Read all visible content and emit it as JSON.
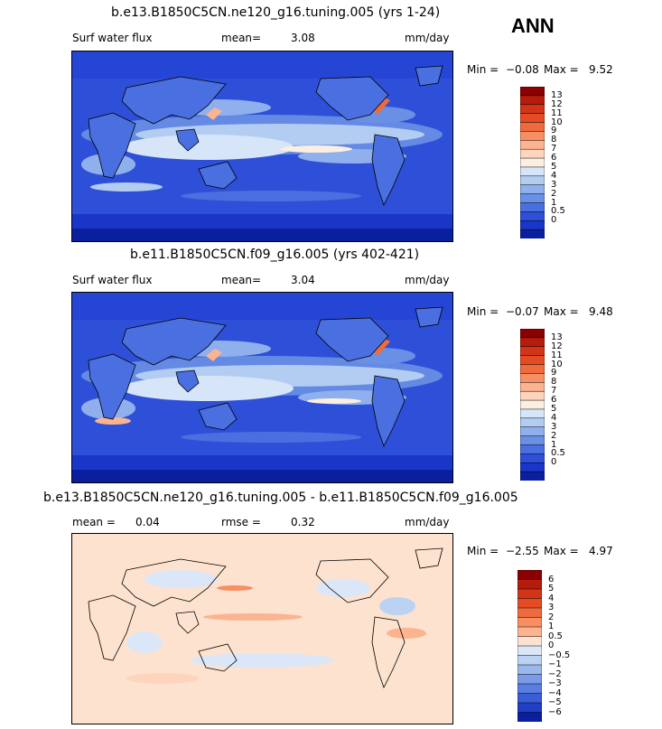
{
  "season": "ANN",
  "panels": [
    {
      "title": "b.e13.B1850C5CN.ne120_g16.tuning.005 (yrs 1-24)",
      "left_label": "Surf water flux",
      "stat1_label": "mean=",
      "stat1_value": "3.08",
      "units": "mm/day",
      "min_label": "Min = ",
      "min_value": "−0.08",
      "max_label": "Max = ",
      "max_value": "9.52"
    },
    {
      "title": "b.e11.B1850C5CN.f09_g16.005 (yrs 402-421)",
      "left_label": "Surf water flux",
      "stat1_label": "mean=",
      "stat1_value": "3.04",
      "units": "mm/day",
      "min_label": "Min = ",
      "min_value": "−0.07",
      "max_label": "Max = ",
      "max_value": "9.48"
    },
    {
      "title": "b.e13.B1850C5CN.ne120_g16.tuning.005 - b.e11.B1850C5CN.f09_g16.005",
      "stat1_label": "mean = ",
      "stat1_value": "0.04",
      "stat2_label": "rmse = ",
      "stat2_value": "0.32",
      "units": "mm/day",
      "min_label": "Min = ",
      "min_value": "−2.55",
      "max_label": "Max = ",
      "max_value": "4.97"
    }
  ],
  "colorbars": [
    {
      "labels": [
        "13",
        "12",
        "11",
        "10",
        "9",
        "8",
        "7",
        "6",
        "5",
        "4",
        "3",
        "2",
        "1",
        "0.5",
        "0"
      ],
      "colors": [
        "#8b0000",
        "#b51c0c",
        "#d23418",
        "#e44a24",
        "#ef6a3c",
        "#f78f62",
        "#fbb390",
        "#fdd5bd",
        "#fcefe2",
        "#d6e6f8",
        "#b3cdf2",
        "#8fb0ec",
        "#6a90e6",
        "#4a6fe0",
        "#2e50d8",
        "#1a36c8",
        "#0a1f9e"
      ]
    },
    {
      "labels": [
        "13",
        "12",
        "11",
        "10",
        "9",
        "8",
        "7",
        "6",
        "5",
        "4",
        "3",
        "2",
        "1",
        "0.5",
        "0"
      ],
      "colors": [
        "#8b0000",
        "#b51c0c",
        "#d23418",
        "#e44a24",
        "#ef6a3c",
        "#f78f62",
        "#fbb390",
        "#fdd5bd",
        "#fcefe2",
        "#d6e6f8",
        "#b3cdf2",
        "#8fb0ec",
        "#6a90e6",
        "#4a6fe0",
        "#2e50d8",
        "#1a36c8",
        "#0a1f9e"
      ]
    },
    {
      "labels": [
        "6",
        "5",
        "4",
        "3",
        "2",
        "1",
        "0.5",
        "0",
        "−0.5",
        "−1",
        "−2",
        "−3",
        "−4",
        "−5",
        "−6"
      ],
      "colors": [
        "#8b0000",
        "#b51c0c",
        "#d23418",
        "#e44a24",
        "#ef6a3c",
        "#f78f62",
        "#fbb390",
        "#fde2cf",
        "#dbe7f8",
        "#bcd2f3",
        "#9bb8ee",
        "#7a9be8",
        "#5a7de2",
        "#3a5ed8",
        "#1f40c4",
        "#0a1f9e"
      ]
    }
  ],
  "chart_data": [
    {
      "type": "heatmap",
      "title": "b.e13.B1850C5CN.ne120_g16.tuning.005 (yrs 1-24)",
      "variable": "Surf water flux",
      "units": "mm/day",
      "mean": 3.08,
      "min": -0.08,
      "max": 9.52,
      "contour_levels": [
        0,
        0.5,
        1,
        2,
        3,
        4,
        5,
        6,
        7,
        8,
        9,
        10,
        11,
        12,
        13
      ]
    },
    {
      "type": "heatmap",
      "title": "b.e11.B1850C5CN.f09_g16.005 (yrs 402-421)",
      "variable": "Surf water flux",
      "units": "mm/day",
      "mean": 3.04,
      "min": -0.07,
      "max": 9.48,
      "contour_levels": [
        0,
        0.5,
        1,
        2,
        3,
        4,
        5,
        6,
        7,
        8,
        9,
        10,
        11,
        12,
        13
      ]
    },
    {
      "type": "heatmap",
      "title": "b.e13.B1850C5CN.ne120_g16.tuning.005 - b.e11.B1850C5CN.f09_g16.005",
      "units": "mm/day",
      "mean": 0.04,
      "rmse": 0.32,
      "min": -2.55,
      "max": 4.97,
      "contour_levels": [
        -6,
        -5,
        -4,
        -3,
        -2,
        -1,
        -0.5,
        0,
        0.5,
        1,
        2,
        3,
        4,
        5,
        6
      ]
    }
  ]
}
